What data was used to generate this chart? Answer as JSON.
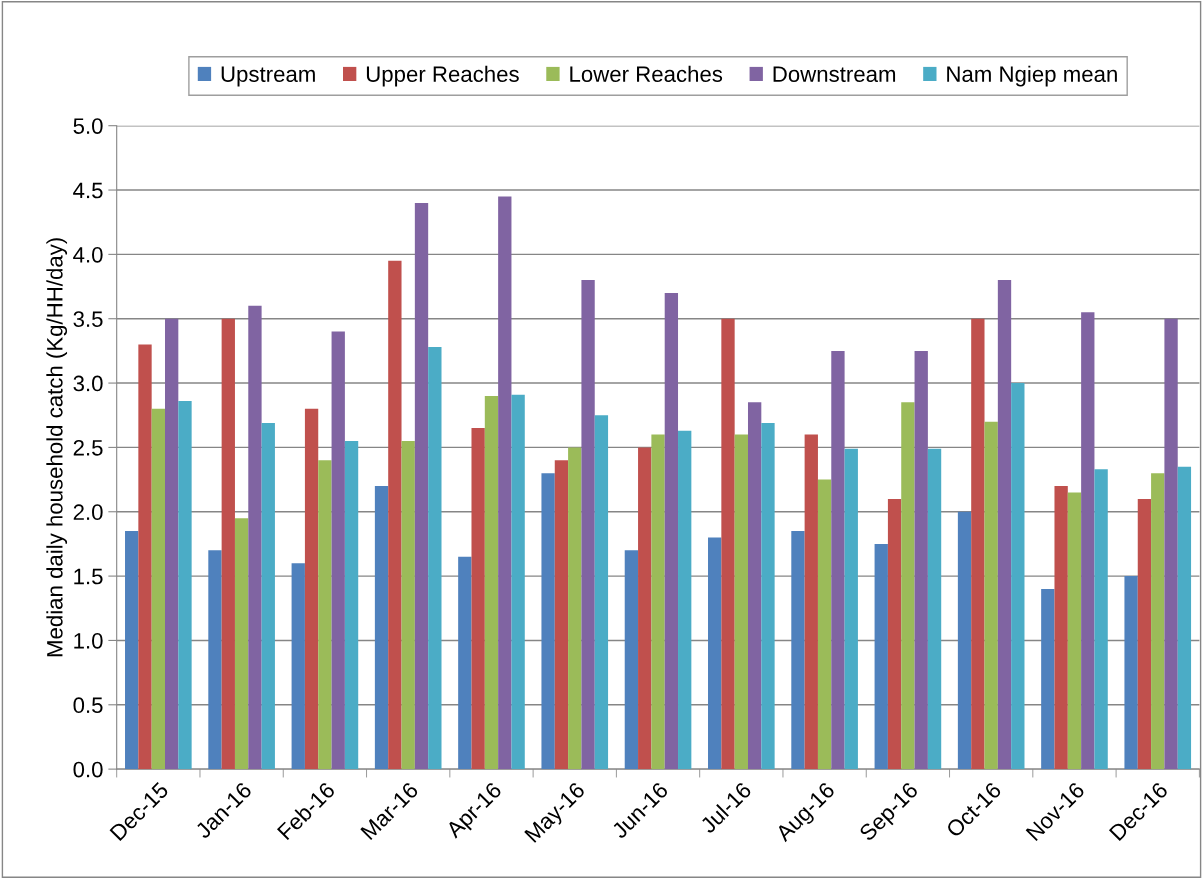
{
  "chart_data": {
    "type": "bar",
    "ylabel": "Median daily household catch (Kg/HH/day)",
    "categories": [
      "Dec-15",
      "Jan-16",
      "Feb-16",
      "Mar-16",
      "Apr-16",
      "May-16",
      "Jun-16",
      "Jul-16",
      "Aug-16",
      "Sep-16",
      "Oct-16",
      "Nov-16",
      "Dec-16"
    ],
    "series": [
      {
        "name": "Upstream",
        "color": "#4f81bd",
        "values": [
          1.85,
          1.7,
          1.6,
          2.2,
          1.65,
          2.3,
          1.7,
          1.8,
          1.85,
          1.75,
          2.0,
          1.4,
          1.5
        ]
      },
      {
        "name": "Upper Reaches",
        "color": "#c0504d",
        "values": [
          3.3,
          3.5,
          2.8,
          3.95,
          2.65,
          2.4,
          2.5,
          3.5,
          2.6,
          2.1,
          3.5,
          2.2,
          2.1
        ]
      },
      {
        "name": "Lower Reaches",
        "color": "#9bbb59",
        "values": [
          2.8,
          1.95,
          2.4,
          2.55,
          2.9,
          2.5,
          2.6,
          2.6,
          2.25,
          2.85,
          2.7,
          2.15,
          2.3
        ]
      },
      {
        "name": "Downstream",
        "color": "#8064a2",
        "values": [
          3.5,
          3.6,
          3.4,
          4.4,
          4.45,
          3.8,
          3.7,
          2.85,
          3.25,
          3.25,
          3.8,
          3.55,
          3.5
        ]
      },
      {
        "name": "Nam Ngiep mean",
        "color": "#4bacc6",
        "values": [
          2.86,
          2.69,
          2.55,
          3.28,
          2.91,
          2.75,
          2.63,
          2.69,
          2.49,
          2.49,
          3.0,
          2.33,
          2.35
        ]
      }
    ],
    "ylim": [
      0,
      5
    ],
    "yticks": [
      {
        "value": 0,
        "label": "0.0"
      },
      {
        "value": 0.5,
        "label": "0.5"
      },
      {
        "value": 1,
        "label": "1.0"
      },
      {
        "value": 1.5,
        "label": "1.5"
      },
      {
        "value": 2,
        "label": "2.0"
      },
      {
        "value": 2.5,
        "label": "2.5"
      },
      {
        "value": 3,
        "label": "3.0"
      },
      {
        "value": 3.5,
        "label": "3.5"
      },
      {
        "value": 4,
        "label": "4.0"
      },
      {
        "value": 4.5,
        "label": "4.5"
      },
      {
        "value": 5,
        "label": "5.0"
      }
    ],
    "grid": "y",
    "legend": "top"
  }
}
